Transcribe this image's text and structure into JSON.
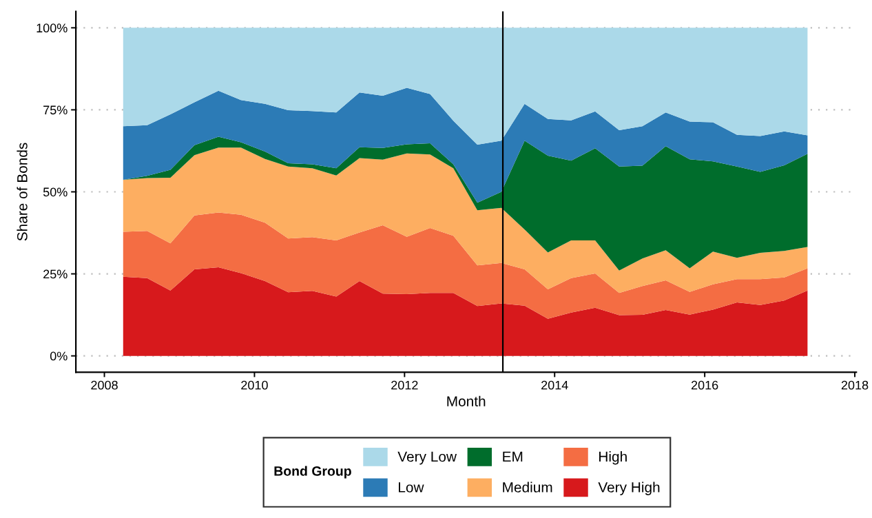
{
  "chart_data": {
    "type": "area",
    "stacked": true,
    "xlabel": "Month",
    "ylabel": "Share of Bonds",
    "legend_title": "Bond Group",
    "legend": "bottom",
    "grid": "y",
    "x": [
      2008.25,
      2008.57,
      2008.88,
      2009.2,
      2009.52,
      2009.82,
      2010.14,
      2010.45,
      2010.77,
      2011.09,
      2011.4,
      2011.71,
      2012.03,
      2012.34,
      2012.65,
      2012.97,
      2013.29,
      2013.6,
      2013.91,
      2014.22,
      2014.54,
      2014.86,
      2015.17,
      2015.48,
      2015.8,
      2016.11,
      2016.43,
      2016.74,
      2017.06,
      2017.37
    ],
    "xlim": [
      2007.62,
      2018.02
    ],
    "xticks": [
      2008,
      2010,
      2012,
      2014,
      2016,
      2018
    ],
    "ylim": [
      -5,
      105
    ],
    "yticks": [
      {
        "value": 0,
        "label": "0%"
      },
      {
        "value": 25,
        "label": "25%"
      },
      {
        "value": 50,
        "label": "50%"
      },
      {
        "value": 75,
        "label": "75%"
      },
      {
        "value": 100,
        "label": "100%"
      }
    ],
    "series": [
      {
        "name": "Very High",
        "color": "#d7191c",
        "values": [
          24.1,
          23.7,
          19.9,
          26.4,
          27.0,
          25.2,
          22.8,
          19.4,
          19.8,
          18.1,
          22.8,
          19.0,
          18.8,
          19.2,
          19.2,
          15.2,
          16.0,
          15.3,
          11.3,
          13.2,
          14.7,
          12.4,
          12.5,
          14.0,
          12.6,
          14.1,
          16.3,
          15.5,
          16.9,
          19.9
        ]
      },
      {
        "name": "High",
        "color": "#f46d43",
        "values": [
          13.7,
          14.4,
          14.4,
          16.4,
          16.7,
          17.8,
          17.8,
          16.4,
          16.4,
          17.1,
          14.8,
          20.8,
          17.5,
          19.8,
          17.4,
          12.4,
          12.3,
          11.1,
          9.0,
          10.5,
          10.4,
          6.8,
          8.8,
          9.0,
          6.9,
          7.7,
          7.1,
          7.9,
          7.0,
          6.8
        ]
      },
      {
        "name": "Medium",
        "color": "#fdae61",
        "values": [
          15.9,
          16.1,
          20.0,
          18.4,
          19.8,
          20.5,
          19.4,
          21.9,
          21.0,
          19.8,
          22.7,
          20.0,
          25.4,
          22.4,
          20.6,
          16.8,
          16.8,
          12.1,
          11.2,
          11.5,
          10.1,
          6.8,
          8.4,
          9.2,
          7.2,
          10.0,
          6.5,
          8.0,
          8.1,
          6.5
        ]
      },
      {
        "name": "EM",
        "color": "#006d2c",
        "values": [
          0.0,
          0.7,
          2.4,
          3.0,
          3.3,
          1.6,
          2.3,
          1.0,
          1.2,
          2.2,
          3.3,
          3.6,
          2.8,
          3.4,
          1.2,
          2.3,
          4.9,
          27.1,
          29.5,
          24.3,
          28.1,
          31.7,
          28.3,
          31.7,
          33.2,
          27.5,
          27.8,
          24.7,
          26.1,
          28.4
        ]
      },
      {
        "name": "Low",
        "color": "#2c7bb6",
        "values": [
          16.3,
          15.4,
          16.9,
          13.1,
          14.0,
          12.9,
          14.5,
          16.2,
          16.2,
          17.0,
          16.7,
          15.9,
          17.2,
          15.0,
          13.3,
          17.7,
          15.6,
          11.2,
          11.2,
          12.3,
          11.2,
          11.1,
          12.0,
          10.3,
          11.5,
          11.9,
          9.7,
          10.9,
          10.3,
          5.6
        ]
      },
      {
        "name": "Very Low",
        "color": "#abd9e9",
        "values": [
          30.0,
          29.7,
          26.4,
          22.7,
          19.2,
          22.0,
          23.2,
          25.1,
          25.4,
          25.8,
          19.7,
          20.7,
          18.3,
          20.2,
          28.3,
          35.6,
          34.4,
          23.2,
          27.8,
          28.2,
          25.5,
          31.2,
          30.0,
          25.8,
          28.6,
          28.8,
          32.6,
          33.0,
          31.6,
          32.8
        ]
      }
    ],
    "ref_lines": [
      {
        "axis": "x",
        "value": 2013.31,
        "color": "#000000"
      }
    ]
  }
}
